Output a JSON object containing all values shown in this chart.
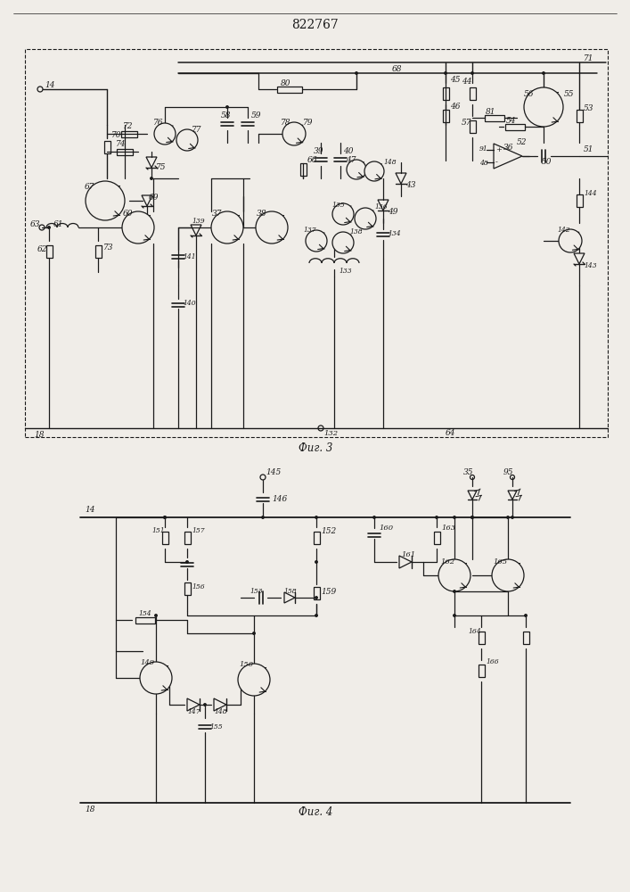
{
  "title": "822767",
  "fig_width": 7.07,
  "fig_height": 10.0,
  "bg_color": "#f0ede8",
  "line_color": "#1a1a1a",
  "fig3_label": "Фиг. 3",
  "fig4_label": "Фиг. 4"
}
